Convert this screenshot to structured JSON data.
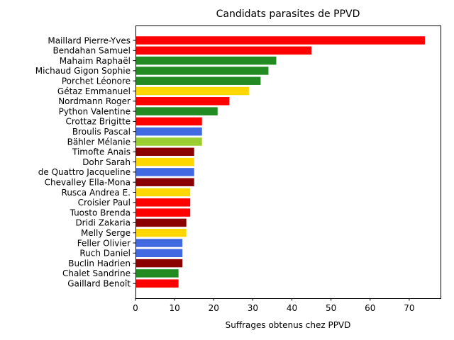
{
  "chart_data": {
    "type": "bar",
    "orientation": "horizontal",
    "title": "Candidats parasites de PPVD",
    "xlabel": "Suffrages obtenus chez PPVD",
    "ylabel": "",
    "xlim": [
      0,
      78
    ],
    "xticks": [
      "0",
      "10",
      "20",
      "30",
      "40",
      "50",
      "60",
      "70"
    ],
    "grid": false,
    "categories": [
      "Maillard Pierre-Yves",
      "Bendahan Samuel",
      "Mahaim Raphaël",
      "Michaud Gigon Sophie",
      "Porchet Léonore",
      "Gétaz Emmanuel",
      "Nordmann Roger",
      "Python Valentine",
      "Crottaz Brigitte",
      "Broulis Pascal",
      "Bähler Mélanie",
      "Timofte Anais",
      "Dohr Sarah",
      "de Quattro Jacqueline",
      "Chevalley Ella-Mona",
      "Rusca Andrea E.",
      "Croisier Paul",
      "Tuosto Brenda",
      "Dridi Zakaria",
      "Melly Serge",
      "Feller Olivier",
      "Ruch Daniel",
      "Buclin Hadrien",
      "Chalet Sandrine",
      "Gaillard Benoît"
    ],
    "values": [
      74,
      45,
      36,
      34,
      32,
      29,
      24,
      21,
      17,
      17,
      17,
      15,
      15,
      15,
      15,
      14,
      14,
      14,
      13,
      13,
      12,
      12,
      12,
      11,
      11
    ],
    "colors": [
      "#ff0000",
      "#ff0000",
      "#228b22",
      "#228b22",
      "#228b22",
      "#ffd700",
      "#ff0000",
      "#228b22",
      "#ff0000",
      "#4169e1",
      "#9acd32",
      "#8b0000",
      "#ffd700",
      "#4169e1",
      "#8b0000",
      "#ffd700",
      "#ff0000",
      "#ff0000",
      "#8b0000",
      "#ffd700",
      "#4169e1",
      "#4169e1",
      "#8b0000",
      "#228b22",
      "#ff0000"
    ]
  }
}
